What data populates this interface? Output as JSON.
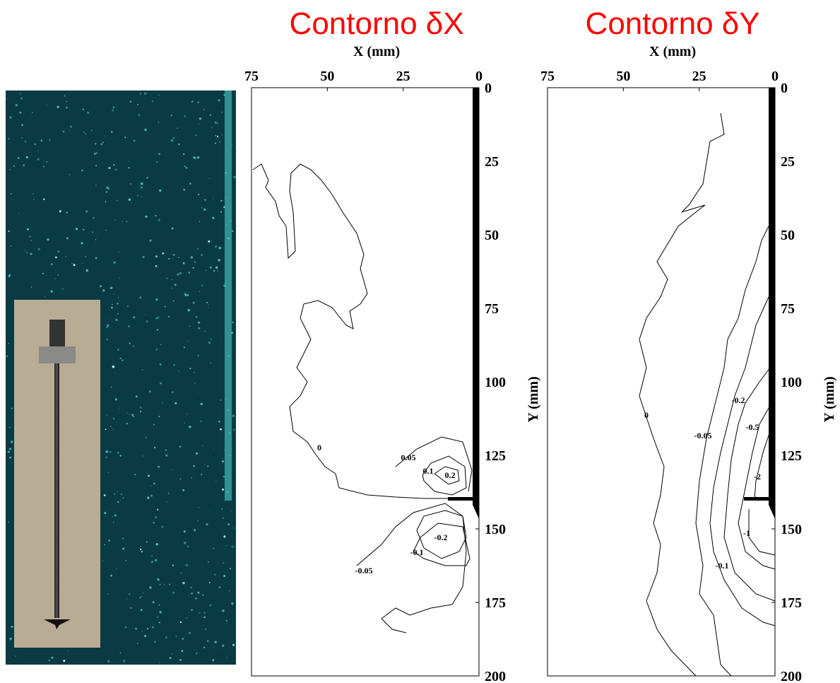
{
  "chart_data": [
    {
      "type": "contour",
      "title": "Contorno δX",
      "xlabel": "X (mm)",
      "ylabel": "Y (mm)",
      "xlim": [
        75,
        0
      ],
      "xticks": [
        75,
        50,
        25,
        0
      ],
      "ylim": [
        200,
        0
      ],
      "yticks": [
        0,
        25,
        50,
        75,
        100,
        125,
        150,
        175,
        200
      ],
      "levels": [
        0,
        0.05,
        0.1,
        0.2,
        -0.05,
        -0.1,
        -0.2
      ]
    },
    {
      "type": "contour",
      "title": "Contorno δY",
      "xlabel": "X (mm)",
      "ylabel": "Y (mm)",
      "xlim": [
        75,
        0
      ],
      "xticks": [
        75,
        50,
        25,
        0
      ],
      "ylim": [
        200,
        0
      ],
      "yticks": [
        0,
        25,
        50,
        75,
        100,
        125,
        150,
        175,
        200
      ],
      "levels": [
        0,
        -0.05,
        -0.1,
        -0.2,
        -0.5,
        -2,
        -1
      ]
    }
  ]
}
